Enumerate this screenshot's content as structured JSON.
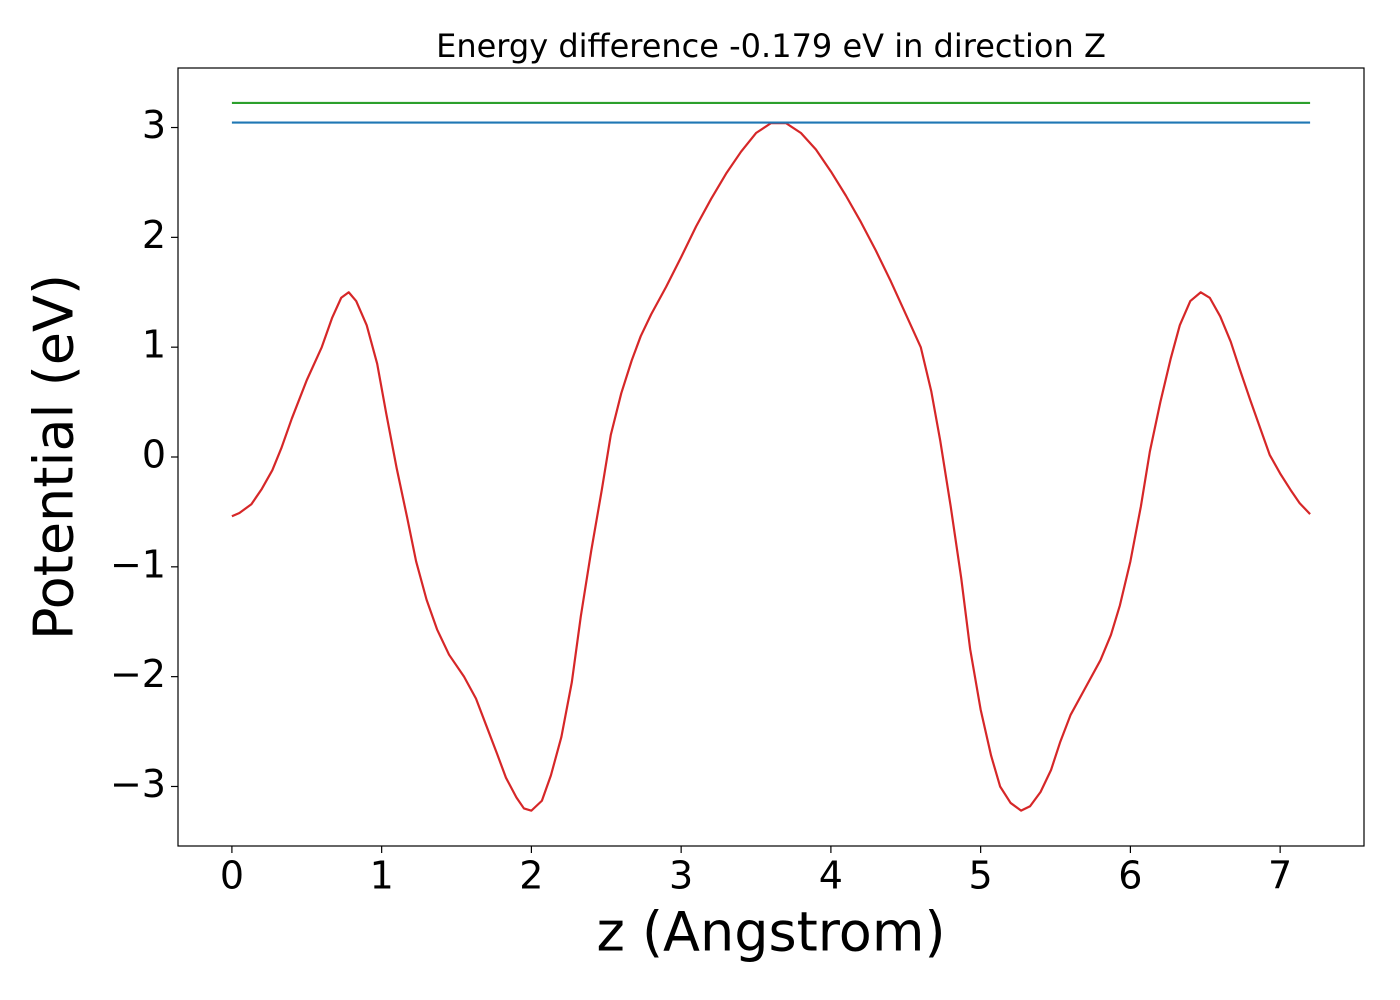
{
  "chart_data": {
    "type": "line",
    "title": "Energy difference -0.179 eV in direction Z",
    "x_label": "z (Angstrom)",
    "y_label": "Potential (eV)",
    "xlim": [
      -0.36,
      7.56
    ],
    "ylim": [
      -3.542,
      3.542
    ],
    "xticks": [
      0,
      1,
      2,
      3,
      4,
      5,
      6,
      7
    ],
    "yticks": [
      {
        "value": -3,
        "label": "−3"
      },
      {
        "value": -2,
        "label": "−2"
      },
      {
        "value": -1,
        "label": "−1"
      },
      0,
      1,
      2,
      3
    ],
    "series": [
      {
        "color": "#d62728",
        "x": [
          0,
          0.05,
          0.13,
          0.2,
          0.27,
          0.33,
          0.4,
          0.5,
          0.6,
          0.67,
          0.73,
          0.78,
          0.83,
          0.9,
          0.97,
          1.03,
          1.1,
          1.17,
          1.23,
          1.3,
          1.37,
          1.45,
          1.55,
          1.63,
          1.7,
          1.77,
          1.83,
          1.9,
          1.95,
          2.0,
          2.07,
          2.13,
          2.2,
          2.27,
          2.33,
          2.4,
          2.47,
          2.53,
          2.6,
          2.67,
          2.73,
          2.8,
          2.9,
          3.0,
          3.1,
          3.2,
          3.3,
          3.4,
          3.5,
          3.6,
          3.7,
          3.8,
          3.9,
          4.0,
          4.1,
          4.2,
          4.3,
          4.4,
          4.5,
          4.6,
          4.67,
          4.73,
          4.8,
          4.87,
          4.93,
          5.0,
          5.07,
          5.13,
          5.2,
          5.27,
          5.33,
          5.4,
          5.47,
          5.53,
          5.6,
          5.7,
          5.8,
          5.87,
          5.93,
          6.0,
          6.07,
          6.13,
          6.2,
          6.27,
          6.33,
          6.4,
          6.47,
          6.53,
          6.6,
          6.67,
          6.73,
          6.8,
          6.87,
          6.93,
          7.0,
          7.07,
          7.13,
          7.2
        ],
        "values": [
          -0.54,
          -0.51,
          -0.43,
          -0.29,
          -0.12,
          0.08,
          0.35,
          0.7,
          1.0,
          1.27,
          1.45,
          1.5,
          1.42,
          1.2,
          0.85,
          0.4,
          -0.1,
          -0.55,
          -0.95,
          -1.3,
          -1.57,
          -1.8,
          -2.0,
          -2.2,
          -2.45,
          -2.7,
          -2.92,
          -3.1,
          -3.2,
          -3.22,
          -3.13,
          -2.9,
          -2.55,
          -2.05,
          -1.45,
          -0.85,
          -0.3,
          0.2,
          0.58,
          0.88,
          1.1,
          1.3,
          1.55,
          1.82,
          2.1,
          2.35,
          2.58,
          2.78,
          2.95,
          3.04,
          3.04,
          2.95,
          2.8,
          2.6,
          2.38,
          2.14,
          1.88,
          1.6,
          1.3,
          1.0,
          0.6,
          0.15,
          -0.45,
          -1.1,
          -1.75,
          -2.3,
          -2.72,
          -3.0,
          -3.15,
          -3.22,
          -3.18,
          -3.05,
          -2.85,
          -2.6,
          -2.35,
          -2.1,
          -1.85,
          -1.62,
          -1.35,
          -0.95,
          -0.45,
          0.05,
          0.5,
          0.9,
          1.2,
          1.42,
          1.5,
          1.45,
          1.28,
          1.05,
          0.8,
          0.52,
          0.25,
          0.02,
          -0.15,
          -0.3,
          -0.42,
          -0.52
        ]
      },
      {
        "color": "#2ca02c",
        "x": [
          0,
          7.2
        ],
        "values": [
          3.224,
          3.224
        ]
      },
      {
        "color": "#1f77b4",
        "x": [
          0,
          7.2
        ],
        "values": [
          3.045,
          3.045
        ]
      }
    ]
  }
}
